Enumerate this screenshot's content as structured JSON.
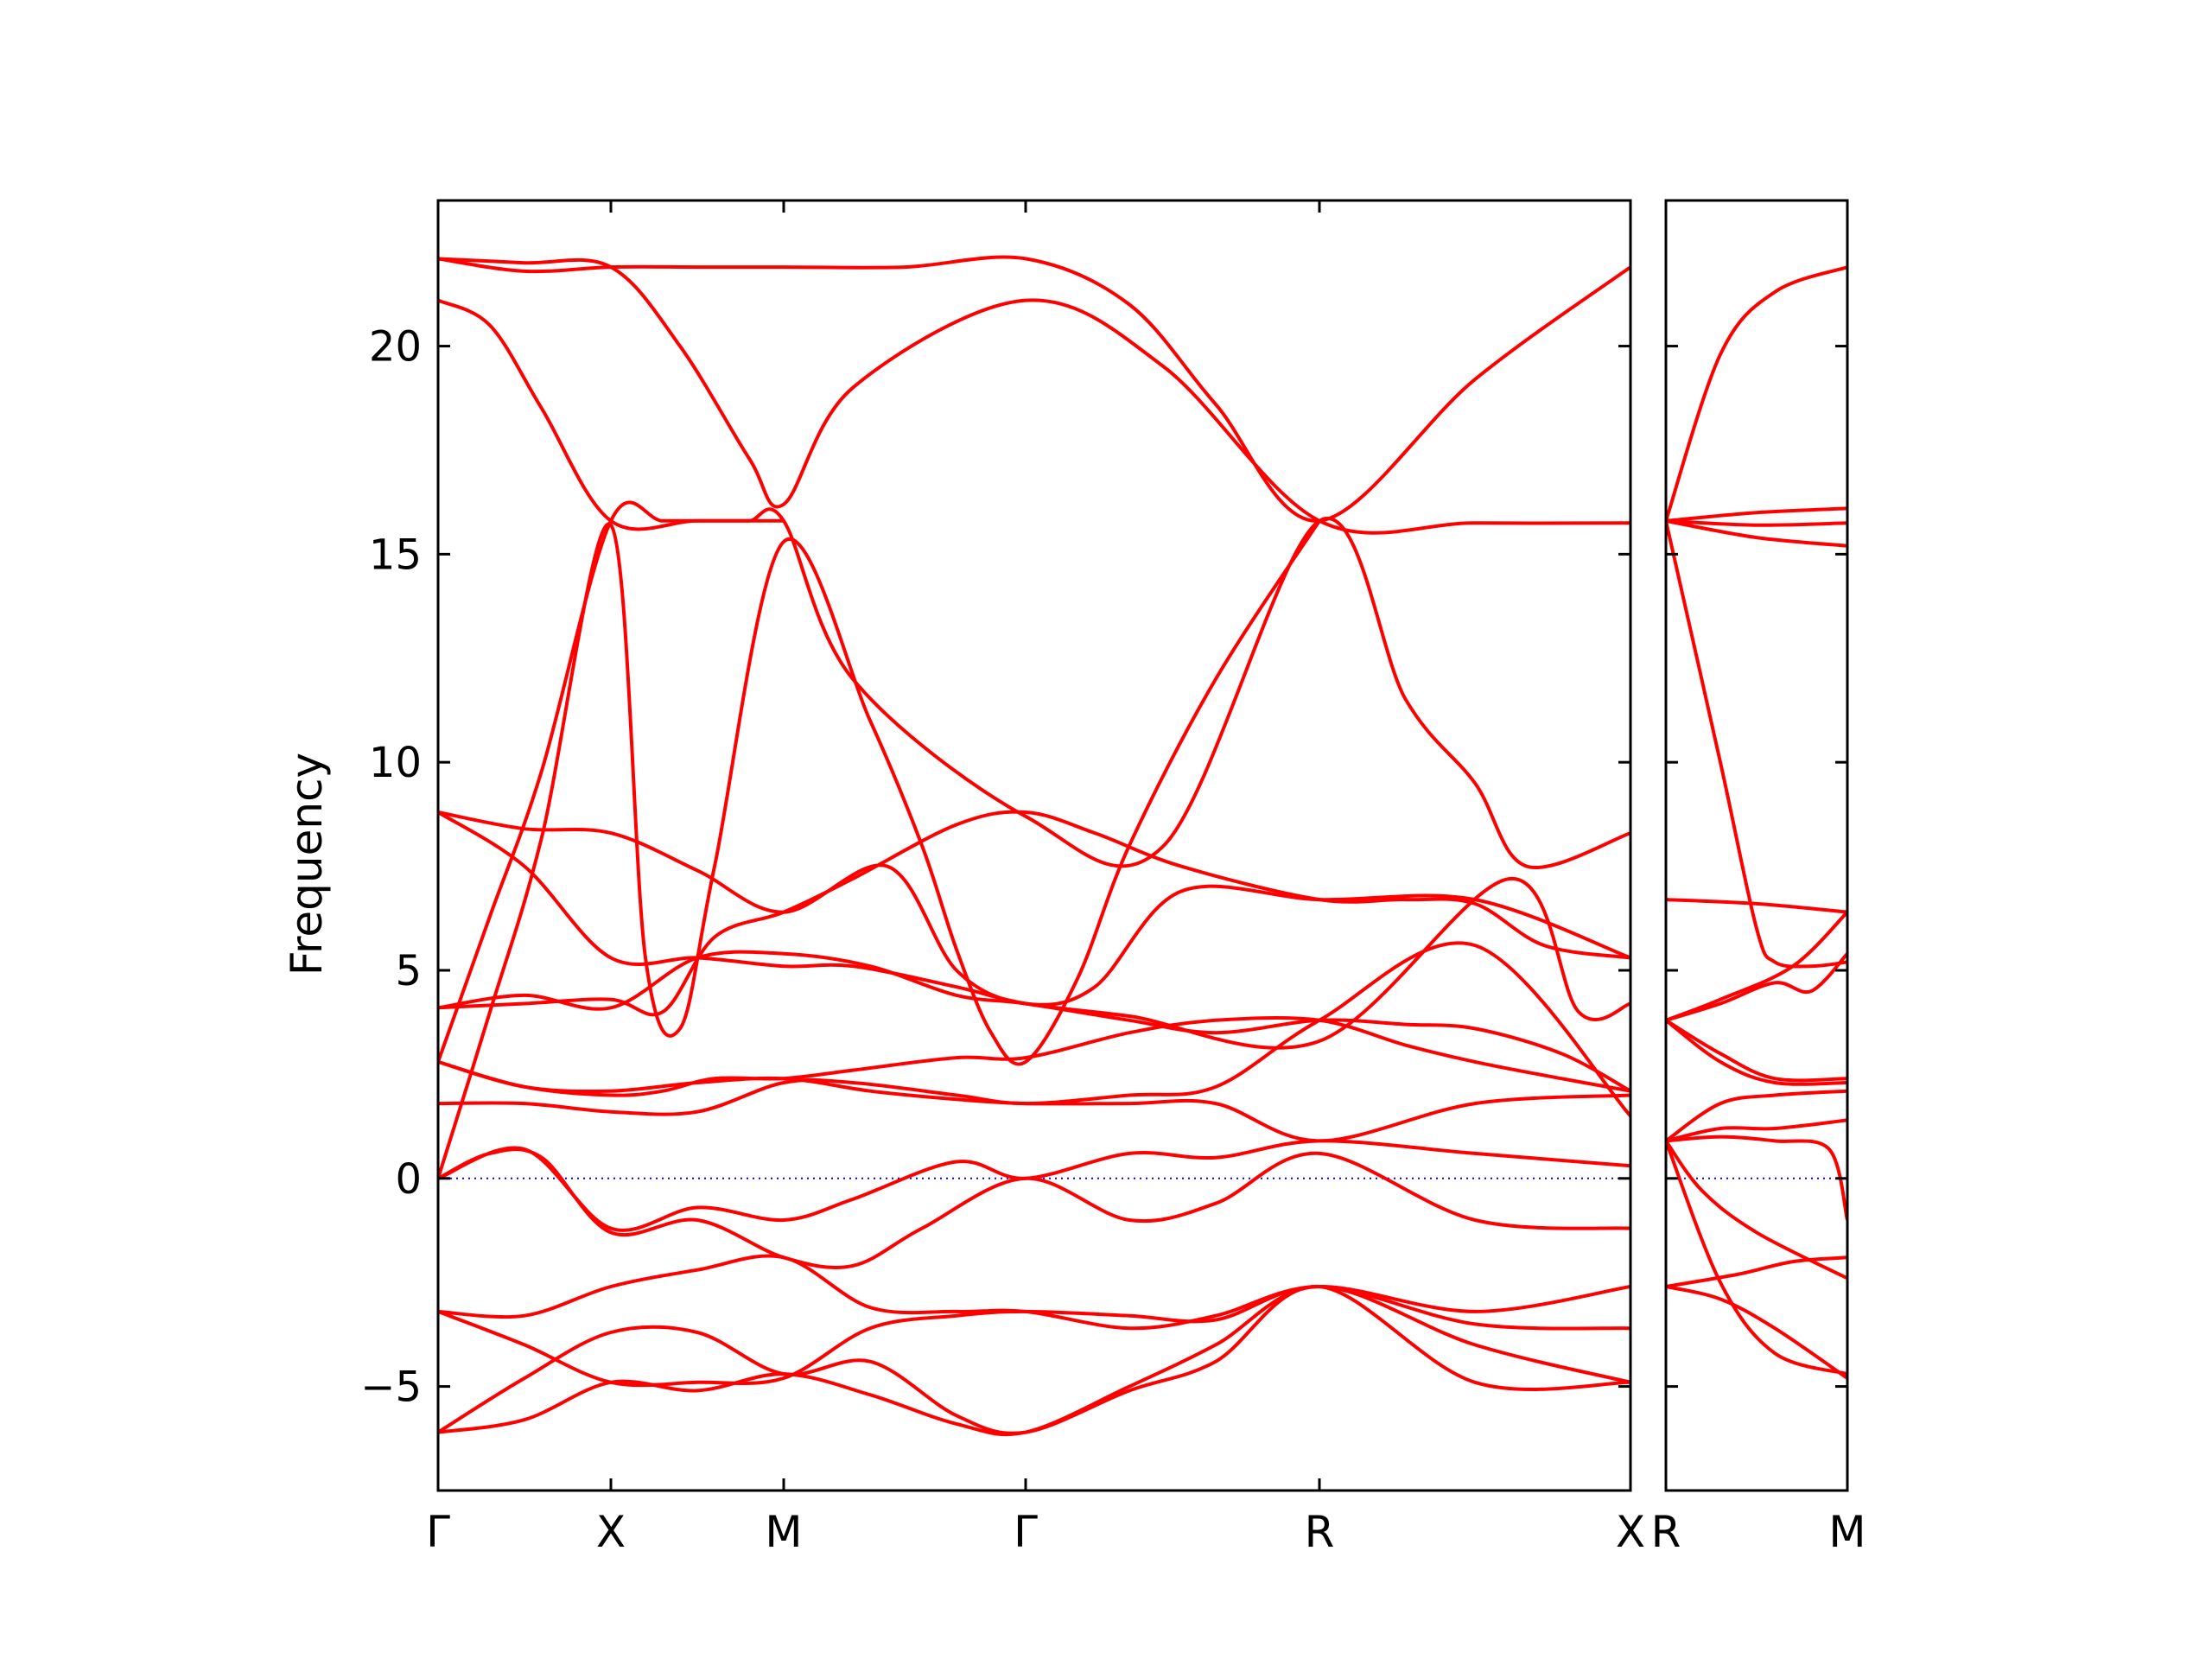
{
  "chart_data": {
    "type": "line",
    "ylabel": "Frequency",
    "ylim": [
      -7.5,
      23.5
    ],
    "yticks": [
      -5,
      0,
      5,
      10,
      15,
      20
    ],
    "ytick_labels": [
      "−5",
      "0",
      "5",
      "10",
      "15",
      "20"
    ],
    "panels": [
      {
        "name": "main",
        "xrange": [
          0,
          6.9
        ],
        "ticks": [
          {
            "x": 0,
            "label": "Γ"
          },
          {
            "x": 1.0,
            "label": "X"
          },
          {
            "x": 2.0,
            "label": "M"
          },
          {
            "x": 3.4,
            "label": "Γ"
          },
          {
            "x": 5.1,
            "label": "R"
          },
          {
            "x": 6.9,
            "label": "X"
          }
        ]
      },
      {
        "name": "second",
        "xrange": [
          0,
          1.0
        ],
        "ticks": [
          {
            "x": 0,
            "label": "R"
          },
          {
            "x": 1.0,
            "label": "M"
          }
        ]
      }
    ],
    "reference_line": {
      "y": 0,
      "color": "#0000ff",
      "style": "dotted"
    },
    "band_color": "#ff0000",
    "bands": [
      {
        "panel": 0,
        "x": [
          0,
          0.5,
          1.0,
          1.5,
          2.0,
          2.7,
          3.4,
          4.0,
          4.5,
          5.1,
          6.0,
          6.9
        ],
        "y": [
          22.1,
          21.8,
          21.9,
          21.9,
          21.9,
          21.9,
          22.1,
          21.0,
          18.6,
          15.8,
          19.2,
          21.9
        ]
      },
      {
        "panel": 0,
        "x": [
          0,
          0.3,
          0.6,
          1.0,
          1.5,
          2.0
        ],
        "y": [
          21.1,
          20.5,
          18.5,
          15.8,
          15.8,
          15.8
        ]
      },
      {
        "panel": 0,
        "x": [
          0,
          0.5,
          1.0,
          1.4,
          1.8,
          2.0,
          2.4,
          3.4,
          4.2,
          5.1,
          6.0,
          6.9
        ],
        "y": [
          22.1,
          22.0,
          21.9,
          20.0,
          17.3,
          16.2,
          19.0,
          21.1,
          19.5,
          15.8,
          15.75,
          15.75
        ]
      },
      {
        "panel": 0,
        "x": [
          0,
          0.3,
          0.6,
          1.0,
          1.3,
          1.6,
          1.8,
          2.0,
          2.4,
          3.4,
          4.2,
          5.1,
          5.6,
          6.0,
          6.3,
          6.9
        ],
        "y": [
          2.8,
          6.3,
          9.8,
          15.8,
          15.8,
          15.8,
          15.8,
          15.8,
          12.0,
          8.7,
          8.0,
          15.8,
          11.5,
          9.5,
          7.5,
          8.3
        ]
      },
      {
        "panel": 0,
        "x": [
          0,
          0.3,
          0.6,
          1.0,
          1.2,
          1.4,
          1.6,
          2.0,
          2.5,
          2.8,
          3.0,
          3.2,
          3.4,
          3.7,
          4.0,
          4.5,
          5.1
        ],
        "y": [
          0,
          4.0,
          8.2,
          15.7,
          5.3,
          3.6,
          7.5,
          15.3,
          11.0,
          8.0,
          5.5,
          3.5,
          2.8,
          4.8,
          8.0,
          12.0,
          15.8
        ]
      },
      {
        "panel": 0,
        "x": [
          0,
          0.5,
          1.0,
          1.5,
          2.0,
          2.6,
          3.0,
          3.4,
          3.8,
          4.3,
          5.1,
          6.0,
          6.9
        ],
        "y": [
          8.8,
          8.4,
          8.3,
          7.4,
          6.4,
          7.5,
          5.0,
          4.2,
          4.6,
          6.9,
          6.7,
          6.7,
          5.3
        ]
      },
      {
        "panel": 0,
        "x": [
          0,
          0.5,
          1.0,
          1.5,
          2.0,
          2.4,
          3.0,
          3.4,
          4.0,
          5.1,
          6.2,
          6.6,
          6.9
        ],
        "y": [
          8.8,
          7.5,
          5.3,
          5.3,
          5.1,
          5.1,
          4.6,
          4.2,
          3.9,
          3.3,
          7.2,
          4.0,
          4.2
        ]
      },
      {
        "panel": 0,
        "x": [
          0,
          0.5,
          1.0,
          1.3,
          1.6,
          2.0,
          2.4,
          3.0,
          3.4,
          3.8,
          4.3,
          5.1,
          5.6,
          6.0,
          6.4,
          6.9
        ],
        "y": [
          4.1,
          4.2,
          4.3,
          4.0,
          5.8,
          6.4,
          7.2,
          8.5,
          8.8,
          8.3,
          7.5,
          6.7,
          6.7,
          6.6,
          5.6,
          5.3
        ]
      },
      {
        "panel": 0,
        "x": [
          0,
          0.5,
          1.0,
          1.5,
          2.0,
          2.5,
          3.0,
          3.4,
          4.0,
          4.5,
          5.1,
          5.6,
          6.0,
          6.5,
          6.9
        ],
        "y": [
          4.1,
          4.4,
          4.1,
          5.3,
          5.4,
          5.1,
          4.4,
          4.2,
          3.8,
          3.5,
          3.8,
          3.7,
          3.6,
          3.0,
          2.1
        ]
      },
      {
        "panel": 0,
        "x": [
          0,
          0.5,
          1.0,
          1.3,
          1.6,
          2.0,
          2.4,
          3.0,
          3.4,
          4.0,
          4.5,
          5.1,
          5.6,
          6.0,
          6.5,
          6.9
        ],
        "y": [
          2.8,
          2.2,
          2.0,
          2.1,
          2.4,
          2.4,
          2.6,
          2.9,
          2.9,
          3.5,
          3.8,
          3.8,
          3.2,
          2.8,
          2.4,
          2.1
        ]
      },
      {
        "panel": 0,
        "x": [
          0,
          0.5,
          1.0,
          1.5,
          2.0,
          2.4,
          3.0,
          3.4,
          4.0,
          4.5,
          5.1,
          6.0,
          6.9
        ],
        "y": [
          1.8,
          1.8,
          1.6,
          1.6,
          2.3,
          2.3,
          2.0,
          1.8,
          2.0,
          2.2,
          3.8,
          5.6,
          1.5
        ]
      },
      {
        "panel": 0,
        "x": [
          0,
          0.5,
          1.0,
          1.5,
          2.0,
          2.5,
          3.0,
          3.4,
          4.0,
          4.5,
          5.1,
          6.0,
          6.9
        ],
        "y": [
          2.8,
          2.2,
          2.1,
          2.3,
          2.4,
          2.1,
          1.9,
          1.8,
          1.8,
          1.8,
          0.9,
          1.8,
          2.0
        ]
      },
      {
        "panel": 0,
        "x": [
          0,
          0.5,
          1.0,
          1.5,
          2.0,
          2.4,
          3.0,
          3.4,
          4.0,
          4.5,
          5.1,
          6.0,
          6.9
        ],
        "y": [
          0,
          0.7,
          -1.2,
          -0.7,
          -1.0,
          -0.5,
          0.4,
          0,
          0.6,
          0.5,
          0.9,
          0.6,
          0.3
        ]
      },
      {
        "panel": 0,
        "x": [
          0,
          0.3,
          0.6,
          1.0,
          1.5,
          2.0,
          2.4,
          2.8,
          3.4,
          4.0,
          4.5,
          5.1,
          6.0,
          6.9
        ],
        "y": [
          0,
          0.6,
          0.5,
          -1.3,
          -1.0,
          -1.9,
          -2.1,
          -1.2,
          0,
          -1.0,
          -0.6,
          0.6,
          -1.0,
          -1.2
        ]
      },
      {
        "panel": 0,
        "x": [
          0,
          0.5,
          1.0,
          1.5,
          2.0,
          2.5,
          3.0,
          3.4,
          4.0,
          4.5,
          5.1,
          6.0,
          6.9
        ],
        "y": [
          -3.2,
          -3.3,
          -2.6,
          -2.2,
          -1.9,
          -3.1,
          -3.2,
          -3.2,
          -3.6,
          -3.3,
          -2.6,
          -3.2,
          -2.6
        ]
      },
      {
        "panel": 0,
        "x": [
          0,
          0.5,
          1.0,
          1.5,
          2.0,
          2.5,
          3.0,
          3.4,
          4.0,
          4.5,
          5.1,
          6.0,
          6.9
        ],
        "y": [
          -3.2,
          -4.0,
          -4.9,
          -4.9,
          -4.8,
          -3.6,
          -3.3,
          -3.2,
          -3.3,
          -3.4,
          -2.6,
          -3.5,
          -3.6
        ]
      },
      {
        "panel": 0,
        "x": [
          0,
          0.5,
          1.0,
          1.5,
          2.0,
          2.5,
          3.0,
          3.4,
          4.0,
          4.5,
          5.1,
          6.0,
          6.9
        ],
        "y": [
          -6.1,
          -4.8,
          -3.7,
          -3.7,
          -4.7,
          -4.4,
          -5.7,
          -6.1,
          -5.1,
          -4.4,
          -2.6,
          -4.9,
          -4.9
        ]
      },
      {
        "panel": 0,
        "x": [
          0,
          0.5,
          1.0,
          1.5,
          2.0,
          2.5,
          3.0,
          3.4,
          4.0,
          4.5,
          5.1,
          6.0,
          6.9
        ],
        "y": [
          -6.1,
          -5.8,
          -4.9,
          -5.1,
          -4.7,
          -5.2,
          -5.9,
          -6.1,
          -5.0,
          -4.0,
          -2.6,
          -4.0,
          -4.9
        ]
      },
      {
        "panel": 1,
        "x": [
          0,
          0.3,
          0.6,
          1.0
        ],
        "y": [
          15.8,
          19.8,
          21.3,
          21.9
        ]
      },
      {
        "panel": 1,
        "x": [
          0,
          0.5,
          1.0
        ],
        "y": [
          15.8,
          16.0,
          16.1
        ]
      },
      {
        "panel": 1,
        "x": [
          0,
          0.5,
          1.0
        ],
        "y": [
          15.8,
          15.7,
          15.75
        ]
      },
      {
        "panel": 1,
        "x": [
          0,
          0.5,
          1.0
        ],
        "y": [
          15.8,
          15.4,
          15.2
        ]
      },
      {
        "panel": 1,
        "x": [
          0,
          0.3,
          0.5,
          0.6,
          0.8,
          1.0
        ],
        "y": [
          15.8,
          10.0,
          6.0,
          5.2,
          5.1,
          5.2
        ]
      },
      {
        "panel": 1,
        "x": [
          0,
          0.5,
          1.0
        ],
        "y": [
          6.7,
          6.6,
          6.4
        ]
      },
      {
        "panel": 1,
        "x": [
          0,
          0.3,
          0.7,
          1.0
        ],
        "y": [
          3.8,
          4.3,
          5.1,
          6.4
        ]
      },
      {
        "panel": 1,
        "x": [
          0,
          0.3,
          0.6,
          0.8,
          1.0
        ],
        "y": [
          3.8,
          4.2,
          4.7,
          4.5,
          5.4
        ]
      },
      {
        "panel": 1,
        "x": [
          0,
          0.3,
          0.6,
          1.0
        ],
        "y": [
          3.8,
          3.0,
          2.4,
          2.4
        ]
      },
      {
        "panel": 1,
        "x": [
          0,
          0.3,
          0.6,
          1.0
        ],
        "y": [
          3.8,
          2.8,
          2.3,
          2.3
        ]
      },
      {
        "panel": 1,
        "x": [
          0,
          0.3,
          0.6,
          1.0
        ],
        "y": [
          0.9,
          1.8,
          2.0,
          2.1
        ]
      },
      {
        "panel": 1,
        "x": [
          0,
          0.3,
          0.6,
          1.0
        ],
        "y": [
          0.9,
          1.2,
          1.2,
          1.4
        ]
      },
      {
        "panel": 1,
        "x": [
          0,
          0.3,
          0.6,
          0.9,
          1.0
        ],
        "y": [
          0.9,
          1.0,
          0.9,
          0.7,
          -1.0
        ]
      },
      {
        "panel": 1,
        "x": [
          0,
          0.2,
          0.5,
          1.0
        ],
        "y": [
          0.9,
          -0.3,
          -1.3,
          -2.4
        ]
      },
      {
        "panel": 1,
        "x": [
          0,
          0.4,
          0.7,
          1.0
        ],
        "y": [
          -2.6,
          -2.3,
          -2.0,
          -1.9
        ]
      },
      {
        "panel": 1,
        "x": [
          0,
          0.3,
          0.6,
          1.0
        ],
        "y": [
          -2.6,
          -2.9,
          -3.6,
          -4.8
        ]
      },
      {
        "panel": 1,
        "x": [
          0,
          0.3,
          0.6,
          1.0
        ],
        "y": [
          0.9,
          -2.5,
          -4.2,
          -4.7
        ]
      }
    ]
  }
}
